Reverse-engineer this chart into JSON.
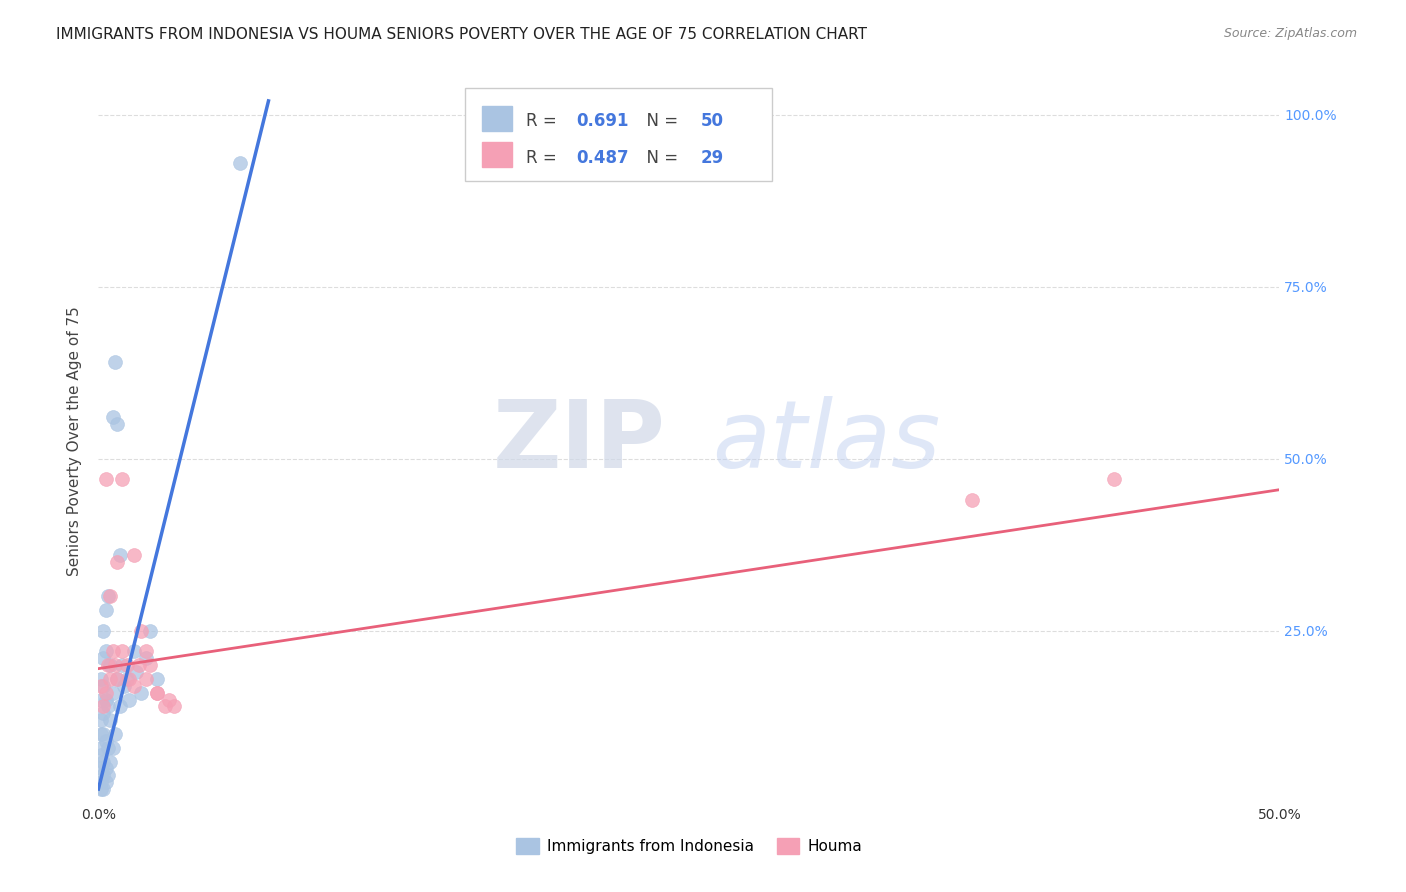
{
  "title": "IMMIGRANTS FROM INDONESIA VS HOUMA SENIORS POVERTY OVER THE AGE OF 75 CORRELATION CHART",
  "source": "Source: ZipAtlas.com",
  "ylabel": "Seniors Poverty Over the Age of 75",
  "xlim": [
    0.0,
    0.5
  ],
  "ylim": [
    0.0,
    1.05
  ],
  "ytick_vals": [
    0.0,
    0.25,
    0.5,
    0.75,
    1.0
  ],
  "xtick_vals": [
    0.0,
    0.1,
    0.2,
    0.3,
    0.4,
    0.5
  ],
  "right_ytick_labels": [
    "100.0%",
    "75.0%",
    "50.0%",
    "25.0%"
  ],
  "right_ytick_vals": [
    1.0,
    0.75,
    0.5,
    0.25
  ],
  "blue_scatter_x": [
    0.001,
    0.001,
    0.001,
    0.001,
    0.001,
    0.001,
    0.001,
    0.001,
    0.001,
    0.002,
    0.002,
    0.002,
    0.002,
    0.002,
    0.002,
    0.002,
    0.002,
    0.003,
    0.003,
    0.003,
    0.003,
    0.003,
    0.003,
    0.004,
    0.004,
    0.004,
    0.004,
    0.005,
    0.005,
    0.005,
    0.006,
    0.006,
    0.006,
    0.007,
    0.007,
    0.008,
    0.008,
    0.009,
    0.009,
    0.01,
    0.011,
    0.012,
    0.013,
    0.015,
    0.016,
    0.018,
    0.02,
    0.022,
    0.025,
    0.06
  ],
  "blue_scatter_y": [
    0.02,
    0.03,
    0.05,
    0.07,
    0.08,
    0.1,
    0.12,
    0.15,
    0.18,
    0.02,
    0.04,
    0.06,
    0.1,
    0.13,
    0.17,
    0.21,
    0.25,
    0.03,
    0.05,
    0.09,
    0.15,
    0.22,
    0.28,
    0.04,
    0.08,
    0.14,
    0.3,
    0.06,
    0.12,
    0.2,
    0.08,
    0.16,
    0.56,
    0.1,
    0.64,
    0.18,
    0.55,
    0.14,
    0.36,
    0.2,
    0.17,
    0.18,
    0.15,
    0.22,
    0.19,
    0.16,
    0.21,
    0.25,
    0.18,
    0.93
  ],
  "pink_scatter_x": [
    0.001,
    0.002,
    0.003,
    0.004,
    0.005,
    0.006,
    0.007,
    0.008,
    0.01,
    0.012,
    0.013,
    0.015,
    0.017,
    0.02,
    0.022,
    0.025,
    0.028,
    0.003,
    0.005,
    0.008,
    0.01,
    0.015,
    0.018,
    0.02,
    0.025,
    0.03,
    0.032,
    0.37,
    0.43
  ],
  "pink_scatter_y": [
    0.17,
    0.14,
    0.16,
    0.2,
    0.18,
    0.22,
    0.2,
    0.18,
    0.22,
    0.2,
    0.18,
    0.17,
    0.2,
    0.22,
    0.2,
    0.16,
    0.14,
    0.47,
    0.3,
    0.35,
    0.47,
    0.36,
    0.25,
    0.18,
    0.16,
    0.15,
    0.14,
    0.44,
    0.47
  ],
  "blue_line_x": [
    0.0,
    0.072
  ],
  "blue_line_y": [
    0.02,
    1.02
  ],
  "pink_line_x": [
    0.0,
    0.5
  ],
  "pink_line_y": [
    0.195,
    0.455
  ],
  "legend_blue_R": "0.691",
  "legend_blue_N": "50",
  "legend_pink_R": "0.487",
  "legend_pink_N": "29",
  "blue_color": "#aac4e2",
  "blue_line_color": "#4477dd",
  "pink_color": "#f5a0b5",
  "pink_line_color": "#e8607a",
  "watermark_zip": "ZIP",
  "watermark_atlas": "atlas",
  "grid_color": "#dddddd",
  "title_fontsize": 11,
  "axis_fontsize": 10,
  "scatter_size": 100,
  "legend_blue_label": "Immigrants from Indonesia",
  "legend_pink_label": "Houma"
}
